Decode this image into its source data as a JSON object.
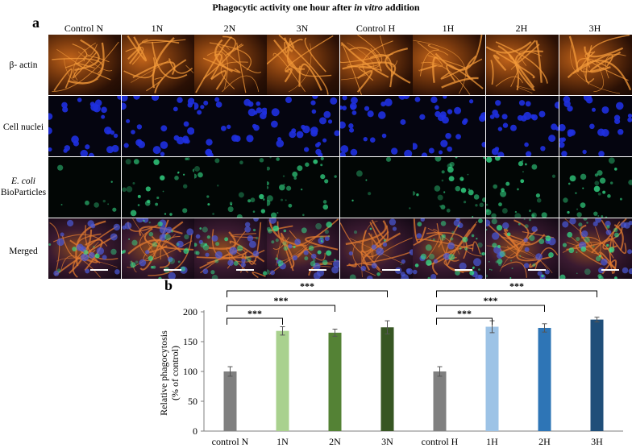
{
  "figure_title": "Phagocytic activity one hour after in vitro addition",
  "title_parts": {
    "pre": "Phagocytic activity one hour after ",
    "italic": "in vitro",
    "post": " addition"
  },
  "panel_a": "a",
  "panel_b": "b",
  "columns": [
    "Control N",
    "1N",
    "2N",
    "3N",
    "Control H",
    "1H",
    "2H",
    "3H"
  ],
  "rows": [
    {
      "label": "β- actin"
    },
    {
      "label": "Cell nuclei"
    },
    {
      "label_italic": "E. coli",
      "label": "BioParticles"
    },
    {
      "label": "Merged"
    }
  ],
  "colors": {
    "actin": "#e07a20",
    "nuclei": "#1a2ad8",
    "ecoli": "#2fd07a",
    "bar_control": "#808080",
    "bar_1N": "#a9d18e",
    "bar_2N": "#548235",
    "bar_3N": "#375623",
    "bar_1H": "#9dc3e6",
    "bar_2H": "#2e75b6",
    "bar_3H": "#1f4e79"
  },
  "chart_data": {
    "type": "bar",
    "categories": [
      "control N",
      "1N",
      "2N",
      "3N",
      "control H",
      "1H",
      "2H",
      "3H"
    ],
    "values": [
      100,
      168,
      165,
      174,
      100,
      175,
      173,
      187
    ],
    "errors": [
      8,
      7,
      6,
      11,
      8,
      10,
      7,
      4
    ],
    "ylabel_line1": "Relative phagocytosis",
    "ylabel_line2": "(% of control)",
    "xlabel": "",
    "ylim": [
      0,
      200
    ],
    "yticks": [
      0,
      50,
      100,
      150,
      200
    ],
    "grid": false,
    "significance": [
      {
        "from": 0,
        "to": 1,
        "label": "***"
      },
      {
        "from": 0,
        "to": 2,
        "label": "***"
      },
      {
        "from": 0,
        "to": 3,
        "label": "***"
      },
      {
        "from": 4,
        "to": 5,
        "label": "***"
      },
      {
        "from": 4,
        "to": 6,
        "label": "***"
      },
      {
        "from": 4,
        "to": 7,
        "label": "***"
      }
    ]
  }
}
